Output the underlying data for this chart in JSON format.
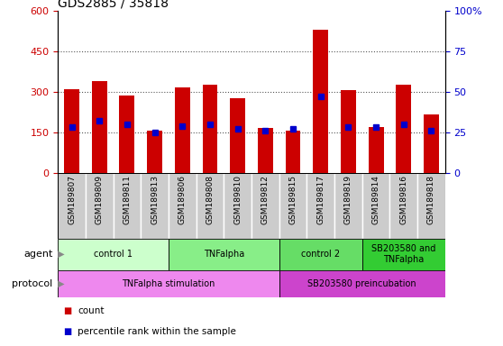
{
  "title": "GDS2885 / 35818",
  "samples": [
    "GSM189807",
    "GSM189809",
    "GSM189811",
    "GSM189813",
    "GSM189806",
    "GSM189808",
    "GSM189810",
    "GSM189812",
    "GSM189815",
    "GSM189817",
    "GSM189819",
    "GSM189814",
    "GSM189816",
    "GSM189818"
  ],
  "counts": [
    310,
    340,
    285,
    155,
    315,
    325,
    275,
    165,
    155,
    530,
    305,
    170,
    325,
    215
  ],
  "percentiles": [
    28,
    32,
    30,
    25,
    29,
    30,
    27,
    26,
    27,
    47,
    28,
    28,
    30,
    26
  ],
  "bar_color": "#cc0000",
  "percentile_color": "#0000cc",
  "ylim_left": [
    0,
    600
  ],
  "ylim_right": [
    0,
    100
  ],
  "yticks_left": [
    0,
    150,
    300,
    450,
    600
  ],
  "ytick_labels_left": [
    "0",
    "150",
    "300",
    "450",
    "600"
  ],
  "yticks_right": [
    0,
    25,
    50,
    75,
    100
  ],
  "ytick_labels_right": [
    "0",
    "25",
    "50",
    "75",
    "100%"
  ],
  "agent_groups": [
    {
      "label": "control 1",
      "start": 0,
      "end": 4,
      "color": "#ccffcc"
    },
    {
      "label": "TNFalpha",
      "start": 4,
      "end": 8,
      "color": "#88ee88"
    },
    {
      "label": "control 2",
      "start": 8,
      "end": 11,
      "color": "#66dd66"
    },
    {
      "label": "SB203580 and\nTNFalpha",
      "start": 11,
      "end": 14,
      "color": "#33cc33"
    }
  ],
  "protocol_groups": [
    {
      "label": "TNFalpha stimulation",
      "start": 0,
      "end": 8,
      "color": "#ee88ee"
    },
    {
      "label": "SB203580 preincubation",
      "start": 8,
      "end": 14,
      "color": "#cc44cc"
    }
  ],
  "xlabel_agent": "agent",
  "xlabel_protocol": "protocol",
  "legend_count_color": "#cc0000",
  "legend_percentile_color": "#0000cc",
  "grid_color": "#555555",
  "tick_label_color_left": "#cc0000",
  "tick_label_color_right": "#0000cc",
  "sample_cell_bg": "#cccccc"
}
